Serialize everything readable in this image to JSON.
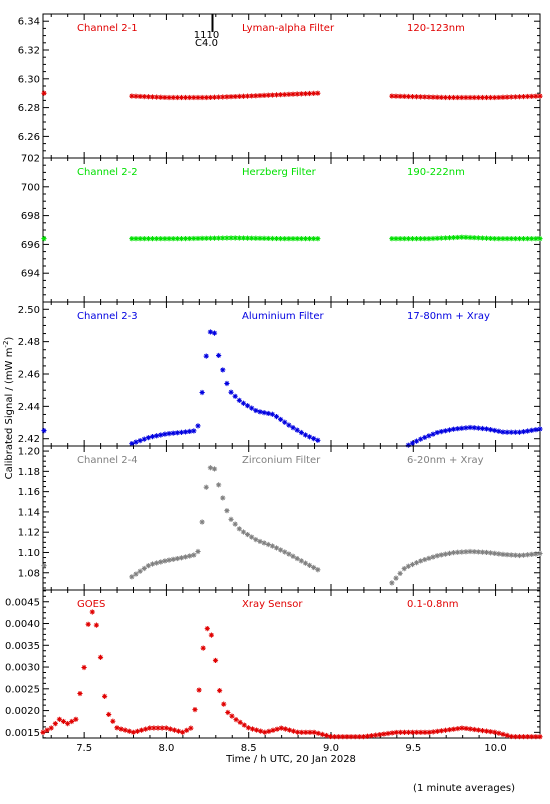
{
  "figure": {
    "ylabel": "Calibrated Signal / (mW m",
    "ylabel_sup": "-2",
    "ylabel_end": ")",
    "xlabel": "Time / h UTC, 20 Jan 2028",
    "footnote": "(1 minute averages)",
    "event_marker": {
      "x": 8.28,
      "label_top": "1110",
      "label_bottom": "C4.0"
    },
    "x_ticks": [
      "7.5",
      "8.0",
      "8.5",
      "9.0",
      "9.5",
      "10.0"
    ]
  },
  "chart_data": [
    {
      "type": "scatter",
      "channel": "Channel 2-1",
      "filter": "Lyman-alpha Filter",
      "band": "120-123nm",
      "color": "#e00000",
      "xlim": [
        7.25,
        10.27
      ],
      "ylim": [
        6.245,
        6.345
      ],
      "y_ticks": [
        "6.26",
        "6.28",
        "6.30",
        "6.32",
        "6.34"
      ],
      "segments": [
        {
          "x": [
            7.25
          ],
          "y": [
            6.29
          ]
        },
        {
          "x": [
            7.79,
            8.0,
            8.25,
            8.5,
            8.7,
            8.92
          ],
          "y": [
            6.288,
            6.287,
            6.287,
            6.288,
            6.289,
            6.29
          ]
        },
        {
          "x": [
            9.37,
            9.7,
            10.0,
            10.27
          ],
          "y": [
            6.288,
            6.287,
            6.287,
            6.288
          ]
        }
      ]
    },
    {
      "type": "scatter",
      "channel": "Channel 2-2",
      "filter": "Herzberg Filter",
      "band": "190-222nm",
      "color": "#00e000",
      "xlim": [
        7.25,
        10.27
      ],
      "ylim": [
        692.0,
        702.0
      ],
      "y_ticks": [
        "694",
        "696",
        "698",
        "700",
        "702"
      ],
      "segments": [
        {
          "x": [
            7.25
          ],
          "y": [
            696.4
          ]
        },
        {
          "x": [
            7.79,
            8.1,
            8.4,
            8.7,
            8.92
          ],
          "y": [
            696.4,
            696.4,
            696.45,
            696.4,
            696.4
          ]
        },
        {
          "x": [
            9.37,
            9.6,
            9.8,
            10.0,
            10.27
          ],
          "y": [
            696.4,
            696.4,
            696.5,
            696.4,
            696.4
          ]
        }
      ]
    },
    {
      "type": "scatter",
      "channel": "Channel 2-3",
      "filter": "Aluminium Filter",
      "band": "17-80nm + Xray",
      "color": "#0000e0",
      "xlim": [
        7.25,
        10.27
      ],
      "ylim": [
        2.4155,
        2.5045
      ],
      "y_ticks": [
        "2.42",
        "2.44",
        "2.46",
        "2.48",
        "2.50"
      ],
      "segments": [
        {
          "x": [
            7.25
          ],
          "y": [
            2.425
          ]
        },
        {
          "x": [
            7.79,
            7.9,
            8.0,
            8.1,
            8.18,
            8.2,
            8.22,
            8.25,
            8.28,
            8.32,
            8.38,
            8.45,
            8.55,
            8.65,
            8.75,
            8.85,
            8.92
          ],
          "y": [
            2.417,
            2.421,
            2.423,
            2.424,
            2.425,
            2.43,
            2.452,
            2.478,
            2.492,
            2.47,
            2.45,
            2.443,
            2.437,
            2.435,
            2.428,
            2.422,
            2.419
          ]
        },
        {
          "x": [
            9.37,
            9.45,
            9.55,
            9.65,
            9.75,
            9.85,
            9.95,
            10.05,
            10.15,
            10.27
          ],
          "y": [
            2.408,
            2.415,
            2.42,
            2.424,
            2.426,
            2.427,
            2.426,
            2.424,
            2.424,
            2.426
          ]
        }
      ]
    },
    {
      "type": "scatter",
      "channel": "Channel 2-4",
      "filter": "Zirconium Filter",
      "band": "6-20nm + Xray",
      "color": "#808080",
      "xlim": [
        7.25,
        10.27
      ],
      "ylim": [
        1.063,
        1.205
      ],
      "y_ticks": [
        "1.08",
        "1.10",
        "1.12",
        "1.14",
        "1.16",
        "1.18",
        "1.20"
      ],
      "segments": [
        {
          "x": [
            7.25
          ],
          "y": [
            1.087
          ]
        },
        {
          "x": [
            7.79,
            7.9,
            8.0,
            8.1,
            8.18,
            8.2,
            8.22,
            8.25,
            8.28,
            8.32,
            8.38,
            8.45,
            8.55,
            8.65,
            8.75,
            8.85,
            8.92
          ],
          "y": [
            1.076,
            1.088,
            1.092,
            1.095,
            1.098,
            1.103,
            1.135,
            1.175,
            1.19,
            1.165,
            1.135,
            1.122,
            1.112,
            1.106,
            1.098,
            1.089,
            1.083
          ]
        },
        {
          "x": [
            9.37,
            9.45,
            9.55,
            9.65,
            9.75,
            9.85,
            9.95,
            10.05,
            10.15,
            10.27
          ],
          "y": [
            1.07,
            1.085,
            1.092,
            1.097,
            1.1,
            1.101,
            1.1,
            1.098,
            1.097,
            1.099
          ]
        }
      ]
    },
    {
      "type": "scatter",
      "channel": "GOES",
      "filter": "Xray Sensor",
      "band": "0.1-0.8nm",
      "color": "#e00000",
      "xlim": [
        7.25,
        10.27
      ],
      "ylim": [
        0.00137,
        0.00477
      ],
      "y_ticks": [
        "0.0015",
        "0.0020",
        "0.0025",
        "0.0030",
        "0.0035",
        "0.0040",
        "0.0045"
      ],
      "segments": [
        {
          "x": [
            7.25,
            7.3,
            7.35,
            7.4,
            7.45,
            7.5,
            7.53,
            7.56,
            7.59,
            7.62,
            7.65,
            7.7,
            7.8,
            7.9,
            8.0,
            8.1,
            8.15,
            8.2,
            8.23,
            8.26,
            8.29,
            8.32,
            8.36,
            8.42,
            8.5,
            8.6,
            8.7,
            8.8,
            8.9,
            9.0,
            9.2,
            9.4,
            9.6,
            9.8,
            10.0,
            10.1,
            10.27
          ],
          "y": [
            0.0015,
            0.0016,
            0.0018,
            0.0017,
            0.0018,
            0.003,
            0.0042,
            0.0043,
            0.0036,
            0.0024,
            0.0019,
            0.0016,
            0.0015,
            0.0016,
            0.0016,
            0.0015,
            0.0016,
            0.0025,
            0.0037,
            0.004,
            0.0034,
            0.0025,
            0.002,
            0.0018,
            0.0016,
            0.0015,
            0.0016,
            0.0015,
            0.0015,
            0.0014,
            0.0014,
            0.0015,
            0.0015,
            0.0016,
            0.0015,
            0.0014,
            0.0014
          ]
        }
      ]
    }
  ]
}
